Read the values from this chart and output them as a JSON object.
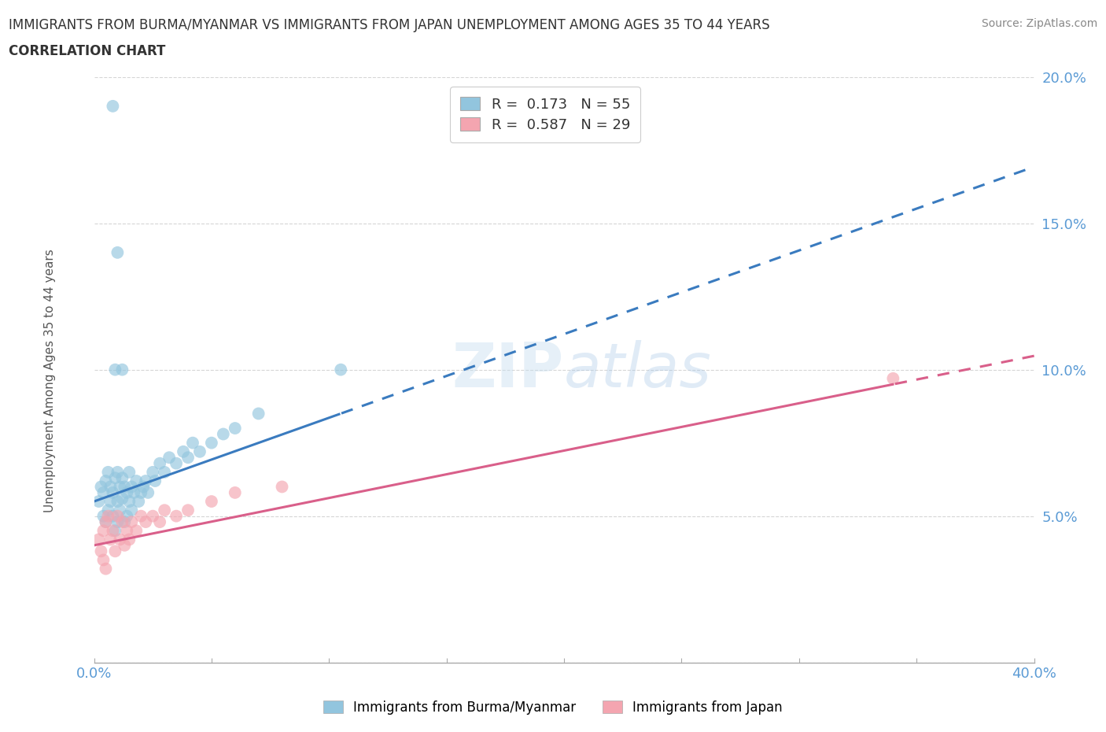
{
  "title_line1": "IMMIGRANTS FROM BURMA/MYANMAR VS IMMIGRANTS FROM JAPAN UNEMPLOYMENT AMONG AGES 35 TO 44 YEARS",
  "title_line2": "CORRELATION CHART",
  "source_text": "Source: ZipAtlas.com",
  "ylabel": "Unemployment Among Ages 35 to 44 years",
  "xlim": [
    0.0,
    0.4
  ],
  "ylim": [
    0.0,
    0.2
  ],
  "xticks": [
    0.0,
    0.05,
    0.1,
    0.15,
    0.2,
    0.25,
    0.3,
    0.35,
    0.4
  ],
  "yticks": [
    0.0,
    0.05,
    0.1,
    0.15,
    0.2
  ],
  "legend_label1": "Immigrants from Burma/Myanmar",
  "legend_label2": "Immigrants from Japan",
  "color_burma": "#92c5de",
  "color_japan": "#f4a5b0",
  "color_burma_line": "#3a7bbf",
  "color_japan_line": "#d95f8a",
  "burma_x": [
    0.002,
    0.003,
    0.004,
    0.004,
    0.005,
    0.005,
    0.006,
    0.006,
    0.007,
    0.007,
    0.008,
    0.008,
    0.009,
    0.009,
    0.01,
    0.01,
    0.01,
    0.011,
    0.011,
    0.012,
    0.012,
    0.013,
    0.013,
    0.014,
    0.014,
    0.015,
    0.015,
    0.016,
    0.016,
    0.017,
    0.018,
    0.019,
    0.02,
    0.021,
    0.022,
    0.023,
    0.025,
    0.026,
    0.028,
    0.03,
    0.032,
    0.035,
    0.038,
    0.04,
    0.042,
    0.045,
    0.05,
    0.055,
    0.06,
    0.07,
    0.01,
    0.012,
    0.008,
    0.009,
    0.105
  ],
  "burma_y": [
    0.055,
    0.06,
    0.058,
    0.05,
    0.062,
    0.048,
    0.065,
    0.052,
    0.06,
    0.055,
    0.058,
    0.05,
    0.063,
    0.045,
    0.065,
    0.055,
    0.048,
    0.06,
    0.052,
    0.063,
    0.056,
    0.06,
    0.048,
    0.058,
    0.05,
    0.065,
    0.055,
    0.06,
    0.052,
    0.058,
    0.062,
    0.055,
    0.058,
    0.06,
    0.062,
    0.058,
    0.065,
    0.062,
    0.068,
    0.065,
    0.07,
    0.068,
    0.072,
    0.07,
    0.075,
    0.072,
    0.075,
    0.078,
    0.08,
    0.085,
    0.14,
    0.1,
    0.19,
    0.1,
    0.1
  ],
  "japan_x": [
    0.002,
    0.003,
    0.004,
    0.004,
    0.005,
    0.005,
    0.006,
    0.007,
    0.008,
    0.009,
    0.01,
    0.011,
    0.012,
    0.013,
    0.014,
    0.015,
    0.016,
    0.018,
    0.02,
    0.022,
    0.025,
    0.028,
    0.03,
    0.035,
    0.04,
    0.05,
    0.06,
    0.08,
    0.34
  ],
  "japan_y": [
    0.042,
    0.038,
    0.045,
    0.035,
    0.048,
    0.032,
    0.05,
    0.042,
    0.045,
    0.038,
    0.05,
    0.042,
    0.048,
    0.04,
    0.045,
    0.042,
    0.048,
    0.045,
    0.05,
    0.048,
    0.05,
    0.048,
    0.052,
    0.05,
    0.052,
    0.055,
    0.058,
    0.06,
    0.097
  ],
  "burma_trend_x0": 0.0,
  "burma_trend_x1": 0.105,
  "burma_trend_y0": 0.055,
  "burma_trend_y1": 0.085,
  "japan_trend_x0": 0.0,
  "japan_trend_x1": 0.34,
  "japan_trend_y0": 0.04,
  "japan_trend_y1": 0.095
}
